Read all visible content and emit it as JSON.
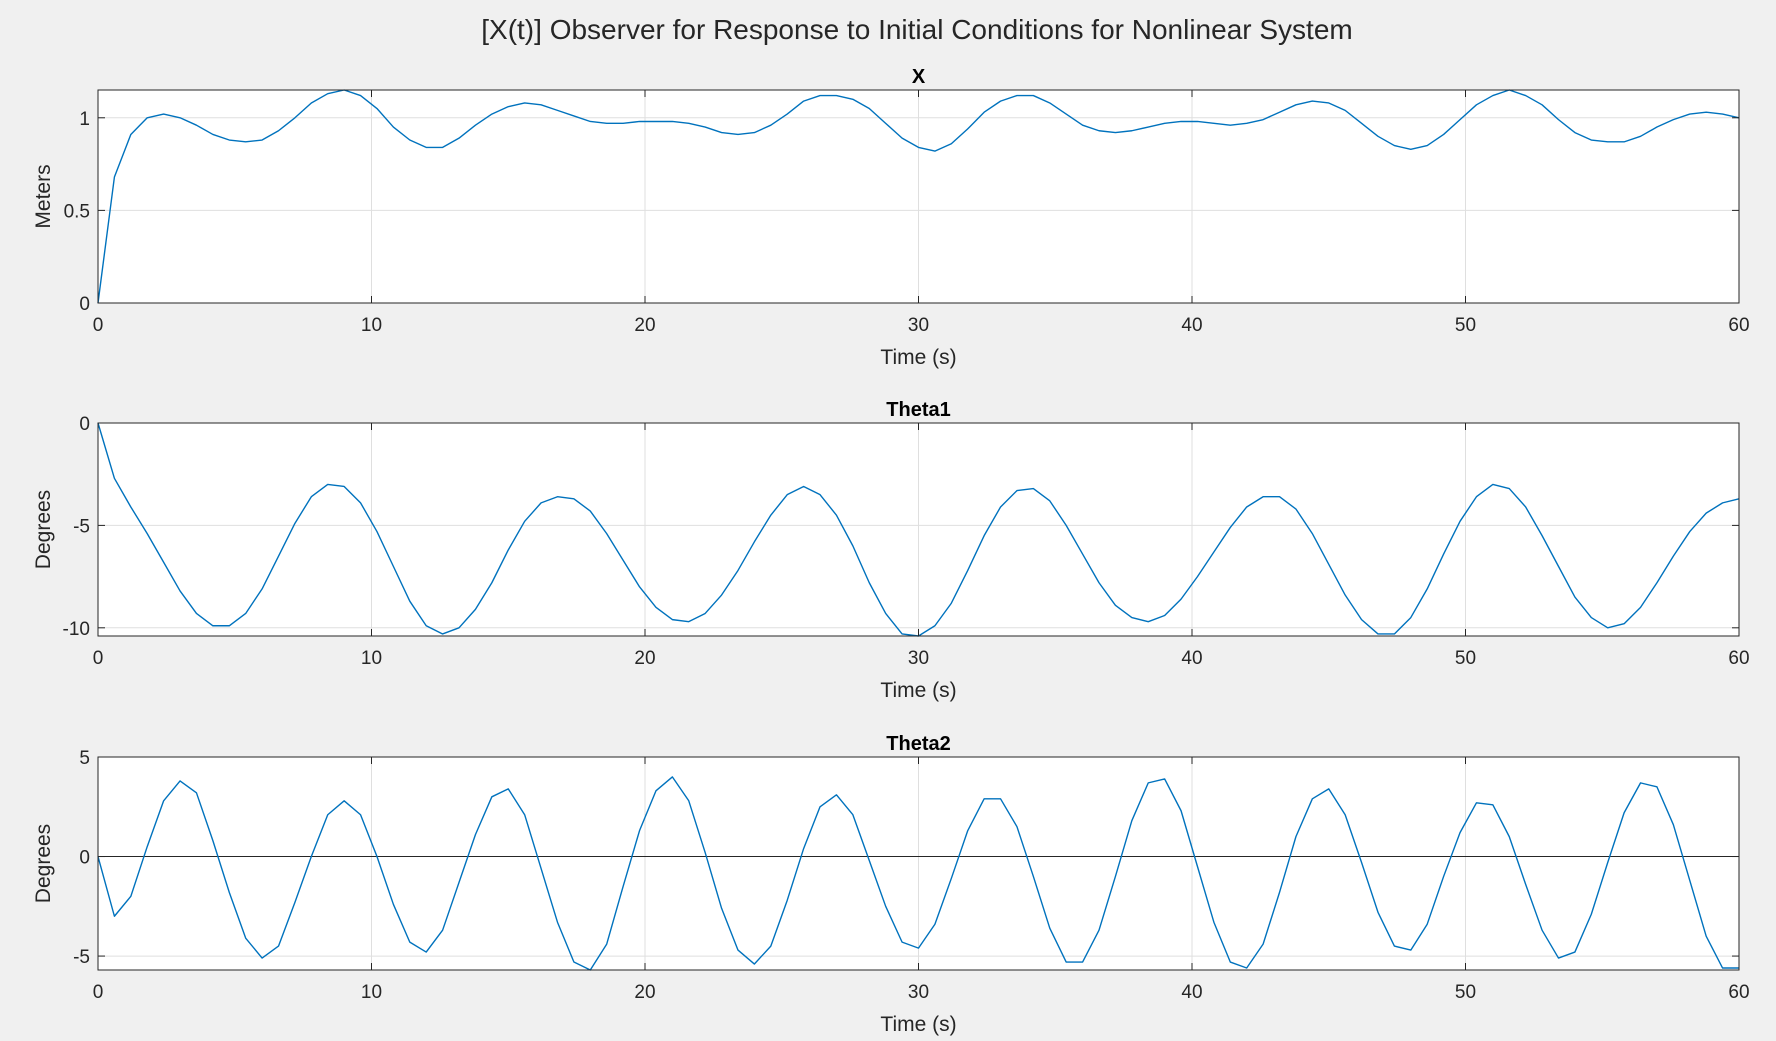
{
  "figure": {
    "title": "[X(t)] Observer for Response to Initial Conditions for Nonlinear System"
  },
  "colors": {
    "line": "#0072bd",
    "grid": "#dfdfdf",
    "axis": "#262626",
    "background": "#f0f0f0",
    "plot_bg": "#ffffff"
  },
  "chart_data": [
    {
      "type": "line",
      "title": "X",
      "xlabel": "Time (s)",
      "ylabel": "Meters",
      "xlim": [
        0,
        60
      ],
      "ylim": [
        0,
        1.15
      ],
      "xticks": [
        0,
        10,
        20,
        30,
        40,
        50,
        60
      ],
      "yticks": [
        0,
        0.5,
        1
      ],
      "ytick_labels": [
        "0",
        "0.5",
        "1"
      ],
      "grid": true,
      "x": [
        0,
        0.6,
        1.2,
        1.8,
        2.4,
        3.0,
        3.6,
        4.2,
        4.8,
        5.4,
        6.0,
        6.6,
        7.2,
        7.8,
        8.4,
        9.0,
        9.6,
        10.2,
        10.8,
        11.4,
        12.0,
        12.6,
        13.2,
        13.8,
        14.4,
        15.0,
        15.6,
        16.2,
        16.8,
        17.4,
        18.0,
        18.6,
        19.2,
        19.8,
        20.4,
        21.0,
        21.6,
        22.2,
        22.8,
        23.4,
        24.0,
        24.6,
        25.2,
        25.8,
        26.4,
        27.0,
        27.6,
        28.2,
        28.8,
        29.4,
        30.0,
        30.6,
        31.2,
        31.8,
        32.4,
        33.0,
        33.6,
        34.2,
        34.8,
        35.4,
        36.0,
        36.6,
        37.2,
        37.8,
        38.4,
        39.0,
        39.6,
        40.2,
        40.8,
        41.4,
        42.0,
        42.6,
        43.2,
        43.8,
        44.4,
        45.0,
        45.6,
        46.2,
        46.8,
        47.4,
        48.0,
        48.6,
        49.2,
        49.8,
        50.4,
        51.0,
        51.6,
        52.2,
        52.8,
        53.4,
        54.0,
        54.6,
        55.2,
        55.8,
        56.4,
        57.0,
        57.6,
        58.2,
        58.8,
        59.4,
        60.0
      ],
      "y": [
        0,
        0.68,
        0.91,
        1.0,
        1.02,
        1.0,
        0.96,
        0.91,
        0.88,
        0.87,
        0.88,
        0.93,
        1.0,
        1.08,
        1.13,
        1.15,
        1.12,
        1.05,
        0.95,
        0.88,
        0.84,
        0.84,
        0.89,
        0.96,
        1.02,
        1.06,
        1.08,
        1.07,
        1.04,
        1.01,
        0.98,
        0.97,
        0.97,
        0.98,
        0.98,
        0.98,
        0.97,
        0.95,
        0.92,
        0.91,
        0.92,
        0.96,
        1.02,
        1.09,
        1.12,
        1.12,
        1.1,
        1.05,
        0.97,
        0.89,
        0.84,
        0.82,
        0.86,
        0.94,
        1.03,
        1.09,
        1.12,
        1.12,
        1.08,
        1.02,
        0.96,
        0.93,
        0.92,
        0.93,
        0.95,
        0.97,
        0.98,
        0.98,
        0.97,
        0.96,
        0.97,
        0.99,
        1.03,
        1.07,
        1.09,
        1.08,
        1.04,
        0.97,
        0.9,
        0.85,
        0.83,
        0.85,
        0.91,
        0.99,
        1.07,
        1.12,
        1.15,
        1.12,
        1.07,
        0.99,
        0.92,
        0.88,
        0.87,
        0.87,
        0.9,
        0.95,
        0.99,
        1.02,
        1.03,
        1.02,
        1.0
      ]
    },
    {
      "type": "line",
      "title": "Theta1",
      "xlabel": "Time (s)",
      "ylabel": "Degrees",
      "xlim": [
        0,
        60
      ],
      "ylim": [
        -10.4,
        0
      ],
      "xticks": [
        0,
        10,
        20,
        30,
        40,
        50,
        60
      ],
      "yticks": [
        -10,
        -5,
        0
      ],
      "ytick_labels": [
        "-10",
        "-5",
        "0"
      ],
      "grid": true,
      "x": [
        0,
        0.6,
        1.2,
        1.8,
        2.4,
        3.0,
        3.6,
        4.2,
        4.8,
        5.4,
        6.0,
        6.6,
        7.2,
        7.8,
        8.4,
        9.0,
        9.6,
        10.2,
        10.8,
        11.4,
        12.0,
        12.6,
        13.2,
        13.8,
        14.4,
        15.0,
        15.6,
        16.2,
        16.8,
        17.4,
        18.0,
        18.6,
        19.2,
        19.8,
        20.4,
        21.0,
        21.6,
        22.2,
        22.8,
        23.4,
        24.0,
        24.6,
        25.2,
        25.8,
        26.4,
        27.0,
        27.6,
        28.2,
        28.8,
        29.4,
        30.0,
        30.6,
        31.2,
        31.8,
        32.4,
        33.0,
        33.6,
        34.2,
        34.8,
        35.4,
        36.0,
        36.6,
        37.2,
        37.8,
        38.4,
        39.0,
        39.6,
        40.2,
        40.8,
        41.4,
        42.0,
        42.6,
        43.2,
        43.8,
        44.4,
        45.0,
        45.6,
        46.2,
        46.8,
        47.4,
        48.0,
        48.6,
        49.2,
        49.8,
        50.4,
        51.0,
        51.6,
        52.2,
        52.8,
        53.4,
        54.0,
        54.6,
        55.2,
        55.8,
        56.4,
        57.0,
        57.6,
        58.2,
        58.8,
        59.4,
        60.0
      ],
      "y": [
        0,
        -2.7,
        -4.1,
        -5.4,
        -6.8,
        -8.2,
        -9.3,
        -9.9,
        -9.9,
        -9.3,
        -8.1,
        -6.5,
        -4.9,
        -3.6,
        -3.0,
        -3.1,
        -3.9,
        -5.3,
        -7.0,
        -8.7,
        -9.9,
        -10.3,
        -10.0,
        -9.1,
        -7.8,
        -6.2,
        -4.8,
        -3.9,
        -3.6,
        -3.7,
        -4.3,
        -5.4,
        -6.7,
        -8.0,
        -9.0,
        -9.6,
        -9.7,
        -9.3,
        -8.4,
        -7.2,
        -5.8,
        -4.5,
        -3.5,
        -3.1,
        -3.5,
        -4.5,
        -6.0,
        -7.8,
        -9.3,
        -10.3,
        -10.4,
        -9.9,
        -8.8,
        -7.2,
        -5.5,
        -4.1,
        -3.3,
        -3.2,
        -3.8,
        -5.0,
        -6.4,
        -7.8,
        -8.9,
        -9.5,
        -9.7,
        -9.4,
        -8.6,
        -7.5,
        -6.3,
        -5.1,
        -4.1,
        -3.6,
        -3.6,
        -4.2,
        -5.4,
        -6.9,
        -8.4,
        -9.6,
        -10.3,
        -10.3,
        -9.5,
        -8.1,
        -6.4,
        -4.8,
        -3.6,
        -3.0,
        -3.2,
        -4.1,
        -5.5,
        -7.0,
        -8.5,
        -9.5,
        -10.0,
        -9.8,
        -9.0,
        -7.8,
        -6.5,
        -5.3,
        -4.4,
        -3.9,
        -3.7
      ]
    },
    {
      "type": "line",
      "title": "Theta2",
      "xlabel": "Time (s)",
      "ylabel": "Degrees",
      "xlim": [
        0,
        60
      ],
      "ylim": [
        -5.7,
        5
      ],
      "xticks": [
        0,
        10,
        20,
        30,
        40,
        50,
        60
      ],
      "yticks": [
        -5,
        0,
        5
      ],
      "ytick_labels": [
        "-5",
        "0",
        "5"
      ],
      "grid": true,
      "x": [
        0,
        0.6,
        1.2,
        1.8,
        2.4,
        3.0,
        3.6,
        4.2,
        4.8,
        5.4,
        6.0,
        6.6,
        7.2,
        7.8,
        8.4,
        9.0,
        9.6,
        10.2,
        10.8,
        11.4,
        12.0,
        12.6,
        13.2,
        13.8,
        14.4,
        15.0,
        15.6,
        16.2,
        16.8,
        17.4,
        18.0,
        18.6,
        19.2,
        19.8,
        20.4,
        21.0,
        21.6,
        22.2,
        22.8,
        23.4,
        24.0,
        24.6,
        25.2,
        25.8,
        26.4,
        27.0,
        27.6,
        28.2,
        28.8,
        29.4,
        30.0,
        30.6,
        31.2,
        31.8,
        32.4,
        33.0,
        33.6,
        34.2,
        34.8,
        35.4,
        36.0,
        36.6,
        37.2,
        37.8,
        38.4,
        39.0,
        39.6,
        40.2,
        40.8,
        41.4,
        42.0,
        42.6,
        43.2,
        43.8,
        44.4,
        45.0,
        45.6,
        46.2,
        46.8,
        47.4,
        48.0,
        48.6,
        49.2,
        49.8,
        50.4,
        51.0,
        51.6,
        52.2,
        52.8,
        53.4,
        54.0,
        54.6,
        55.2,
        55.8,
        56.4,
        57.0,
        57.6,
        58.2,
        58.8,
        59.4,
        60.0
      ],
      "y": [
        0,
        -3.0,
        -2.0,
        0.5,
        2.8,
        3.8,
        3.2,
        0.8,
        -1.8,
        -4.1,
        -5.1,
        -4.5,
        -2.3,
        0.0,
        2.1,
        2.8,
        2.1,
        0.0,
        -2.4,
        -4.3,
        -4.8,
        -3.7,
        -1.3,
        1.1,
        3.0,
        3.4,
        2.1,
        -0.6,
        -3.3,
        -5.3,
        -5.7,
        -4.4,
        -1.5,
        1.3,
        3.3,
        4.0,
        2.8,
        0.2,
        -2.6,
        -4.7,
        -5.4,
        -4.5,
        -2.2,
        0.4,
        2.5,
        3.1,
        2.1,
        -0.2,
        -2.5,
        -4.3,
        -4.6,
        -3.4,
        -1.1,
        1.3,
        2.9,
        2.9,
        1.5,
        -1.0,
        -3.6,
        -5.3,
        -5.3,
        -3.7,
        -1.0,
        1.8,
        3.7,
        3.9,
        2.3,
        -0.5,
        -3.3,
        -5.3,
        -5.6,
        -4.4,
        -1.8,
        1.0,
        2.9,
        3.4,
        2.1,
        -0.3,
        -2.8,
        -4.5,
        -4.7,
        -3.4,
        -1.0,
        1.2,
        2.7,
        2.6,
        1.0,
        -1.4,
        -3.7,
        -5.1,
        -4.8,
        -2.9,
        -0.3,
        2.2,
        3.7,
        3.5,
        1.6,
        -1.2,
        -4.0,
        -5.6,
        -5.6
      ]
    }
  ]
}
